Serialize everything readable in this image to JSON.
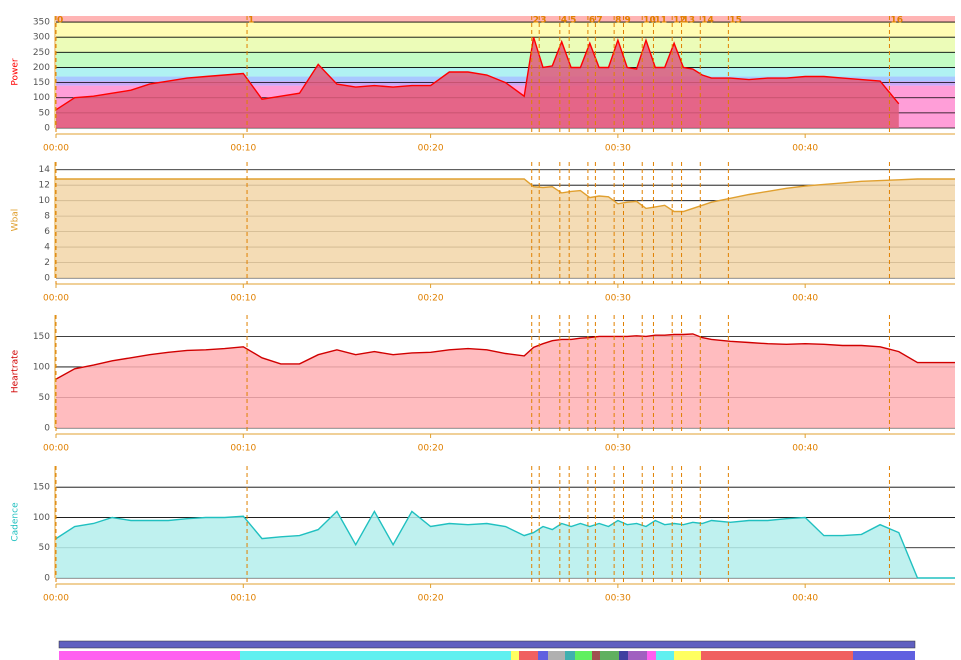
{
  "chart_data": [
    {
      "type": "line",
      "y_label": "Power",
      "color": "#ff0000",
      "fill": "#e05a7a",
      "x": [
        0,
        1,
        2,
        3,
        4,
        5,
        6,
        7,
        8,
        9,
        10,
        11,
        12,
        13,
        14,
        15,
        16,
        17,
        18,
        19,
        20,
        21,
        22,
        23,
        24,
        25,
        25.5,
        26,
        26.5,
        27,
        27.5,
        28,
        28.5,
        29,
        29.5,
        30,
        30.5,
        31,
        31.5,
        32,
        32.5,
        33,
        33.5,
        34,
        34.5,
        35,
        36,
        37,
        38,
        39,
        40,
        41,
        42,
        43,
        44,
        45,
        46,
        47,
        48
      ],
      "series": [
        {
          "name": "Power",
          "color": "#ff0000",
          "values": [
            60,
            100,
            105,
            115,
            125,
            145,
            155,
            165,
            170,
            175,
            180,
            95,
            105,
            115,
            210,
            145,
            135,
            140,
            135,
            140,
            140,
            185,
            185,
            175,
            150,
            105,
            300,
            200,
            205,
            285,
            200,
            200,
            280,
            200,
            200,
            290,
            200,
            195,
            290,
            200,
            200,
            280,
            200,
            195,
            175,
            165,
            165,
            160,
            165,
            165,
            170,
            170,
            165,
            160,
            155,
            80,
            null,
            null,
            null
          ]
        }
      ],
      "zones": [
        {
          "from": 0,
          "to": 140,
          "color": "#ff9ed8"
        },
        {
          "from": 140,
          "to": 155,
          "color": "#c8a8f8"
        },
        {
          "from": 155,
          "to": 170,
          "color": "#a8c8ff"
        },
        {
          "from": 170,
          "to": 200,
          "color": "#b0f2f2"
        },
        {
          "from": 200,
          "to": 250,
          "color": "#c4fcc4"
        },
        {
          "from": 250,
          "to": 300,
          "color": "#ecfcb8"
        },
        {
          "from": 300,
          "to": 350,
          "color": "#fffcb4"
        },
        {
          "from": 350,
          "to": 370,
          "color": "#ffb4b4"
        }
      ],
      "annotations": [
        {
          "label": "0",
          "x": 0
        },
        {
          "label": "1",
          "x": 10.2
        },
        {
          "label": "2",
          "x": 25.4
        },
        {
          "label": "3",
          "x": 25.8
        },
        {
          "label": "4",
          "x": 26.9
        },
        {
          "label": "5",
          "x": 27.4
        },
        {
          "label": "6",
          "x": 28.4
        },
        {
          "label": "7",
          "x": 28.8
        },
        {
          "label": "8",
          "x": 29.8
        },
        {
          "label": "9",
          "x": 30.3
        },
        {
          "label": "10",
          "x": 31.3
        },
        {
          "label": "11",
          "x": 31.9
        },
        {
          "label": "12",
          "x": 32.9
        },
        {
          "label": "13",
          "x": 33.4
        },
        {
          "label": "14",
          "x": 34.4
        },
        {
          "label": "15",
          "x": 35.9
        },
        {
          "label": "16",
          "x": 44.5
        }
      ],
      "xlim": [
        0,
        48
      ],
      "xticks": [
        {
          "value": 0,
          "label": "00:00"
        },
        {
          "value": 10,
          "label": "00:10"
        },
        {
          "value": 20,
          "label": "00:20"
        },
        {
          "value": 30,
          "label": "00:30"
        },
        {
          "value": 40,
          "label": "00:40"
        }
      ],
      "ylim": [
        0,
        370
      ],
      "yticks": [
        0,
        50,
        100,
        150,
        200,
        250,
        300,
        350
      ]
    },
    {
      "type": "line",
      "y_label": "Wbal",
      "color": "#e0a030",
      "fill": "#f2d6a8",
      "x": [
        0,
        1,
        2,
        3,
        4,
        5,
        6,
        7,
        8,
        9,
        10,
        11,
        12,
        13,
        14,
        15,
        16,
        17,
        18,
        19,
        20,
        21,
        22,
        23,
        24,
        25,
        25.5,
        26,
        26.5,
        27,
        27.5,
        28,
        28.5,
        29,
        29.5,
        30,
        30.5,
        31,
        31.5,
        32,
        32.5,
        33,
        33.5,
        34,
        34.5,
        35,
        36,
        37,
        38,
        39,
        40,
        41,
        42,
        43,
        44,
        45,
        46,
        47,
        48
      ],
      "series": [
        {
          "name": "Wbal",
          "color": "#e0a030",
          "values": [
            12.8,
            12.8,
            12.8,
            12.8,
            12.8,
            12.8,
            12.8,
            12.8,
            12.8,
            12.8,
            12.8,
            12.8,
            12.8,
            12.8,
            12.8,
            12.8,
            12.8,
            12.8,
            12.8,
            12.8,
            12.8,
            12.8,
            12.8,
            12.8,
            12.8,
            12.8,
            11.8,
            11.7,
            11.8,
            11.0,
            11.2,
            11.3,
            10.4,
            10.6,
            10.5,
            9.6,
            9.8,
            9.9,
            9.0,
            9.2,
            9.4,
            8.6,
            8.6,
            9.0,
            9.4,
            9.8,
            10.3,
            10.8,
            11.2,
            11.6,
            11.9,
            12.1,
            12.3,
            12.5,
            12.6,
            12.7,
            12.8,
            12.8,
            12.8
          ]
        }
      ],
      "xlim": [
        0,
        48
      ],
      "xticks": [
        {
          "value": 0,
          "label": "00:00"
        },
        {
          "value": 10,
          "label": "00:10"
        },
        {
          "value": 20,
          "label": "00:20"
        },
        {
          "value": 30,
          "label": "00:30"
        },
        {
          "value": 40,
          "label": "00:40"
        }
      ],
      "ylim": [
        0,
        15
      ],
      "yticks": [
        0,
        2,
        4,
        6,
        8,
        10,
        12,
        14
      ]
    },
    {
      "type": "line",
      "y_label": "Heartrate",
      "color": "#d00000",
      "fill": "#ffb0b4",
      "x": [
        0,
        1,
        2,
        3,
        4,
        5,
        6,
        7,
        8,
        9,
        10,
        11,
        12,
        13,
        14,
        15,
        16,
        17,
        18,
        19,
        20,
        21,
        22,
        23,
        24,
        25,
        25.5,
        26,
        26.5,
        27,
        27.5,
        28,
        28.5,
        29,
        29.5,
        30,
        30.5,
        31,
        31.5,
        32,
        32.5,
        33,
        33.5,
        34,
        34.5,
        35,
        36,
        37,
        38,
        39,
        40,
        41,
        42,
        43,
        44,
        45,
        46,
        47,
        48
      ],
      "series": [
        {
          "name": "Heartrate",
          "color": "#d00000",
          "values": [
            80,
            97,
            103,
            110,
            115,
            120,
            124,
            127,
            128,
            130,
            133,
            115,
            105,
            105,
            120,
            128,
            120,
            125,
            120,
            123,
            124,
            128,
            130,
            128,
            122,
            118,
            132,
            138,
            143,
            145,
            145,
            147,
            148,
            150,
            150,
            150,
            150,
            151,
            150,
            152,
            152,
            153,
            153,
            154,
            148,
            145,
            142,
            140,
            138,
            137,
            138,
            137,
            135,
            135,
            133,
            125,
            107,
            107,
            107
          ]
        }
      ],
      "xlim": [
        0,
        48
      ],
      "xticks": [
        {
          "value": 0,
          "label": "00:00"
        },
        {
          "value": 10,
          "label": "00:10"
        },
        {
          "value": 20,
          "label": "00:20"
        },
        {
          "value": 30,
          "label": "00:30"
        },
        {
          "value": 40,
          "label": "00:40"
        }
      ],
      "ylim": [
        0,
        185
      ],
      "yticks": [
        0,
        50,
        100,
        150
      ]
    },
    {
      "type": "line",
      "y_label": "Cadence",
      "color": "#20c0c0",
      "fill": "#b4eeec",
      "x": [
        0,
        1,
        2,
        3,
        4,
        5,
        6,
        7,
        8,
        9,
        10,
        11,
        12,
        13,
        14,
        15,
        16,
        17,
        18,
        19,
        20,
        21,
        22,
        23,
        24,
        25,
        25.5,
        26,
        26.5,
        27,
        27.5,
        28,
        28.5,
        29,
        29.5,
        30,
        30.5,
        31,
        31.5,
        32,
        32.5,
        33,
        33.5,
        34,
        34.5,
        35,
        36,
        37,
        38,
        39,
        40,
        41,
        42,
        43,
        44,
        45,
        46,
        47,
        48
      ],
      "series": [
        {
          "name": "Cadence",
          "color": "#20c0c0",
          "values": [
            65,
            85,
            90,
            100,
            95,
            95,
            95,
            98,
            100,
            100,
            102,
            65,
            68,
            70,
            80,
            110,
            55,
            110,
            55,
            110,
            85,
            90,
            88,
            90,
            85,
            70,
            75,
            85,
            80,
            90,
            85,
            90,
            85,
            90,
            85,
            95,
            88,
            90,
            85,
            95,
            88,
            90,
            88,
            92,
            90,
            95,
            92,
            95,
            95,
            98,
            100,
            70,
            70,
            72,
            88,
            75,
            0,
            0,
            0
          ]
        }
      ],
      "xlim": [
        0,
        48
      ],
      "xticks": [
        {
          "value": 0,
          "label": "00:00"
        },
        {
          "value": 10,
          "label": "00:10"
        },
        {
          "value": 20,
          "label": "00:20"
        },
        {
          "value": 30,
          "label": "00:30"
        },
        {
          "value": 40,
          "label": "00:40"
        }
      ],
      "ylim": [
        0,
        185
      ],
      "yticks": [
        0,
        50,
        100,
        150
      ]
    }
  ]
}
